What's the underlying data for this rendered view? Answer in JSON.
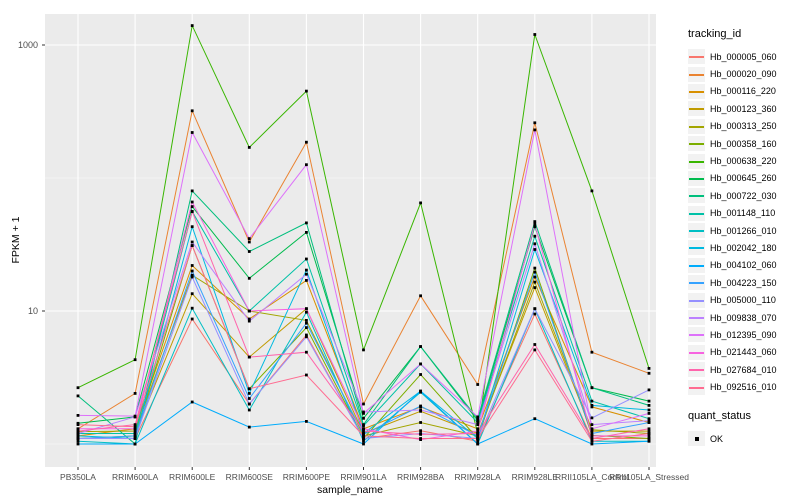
{
  "axes": {
    "y_label": "FPKM + 1",
    "x_label": "sample_name",
    "y_ticks": [
      {
        "label": "1000",
        "value": 1000
      },
      {
        "label": "10",
        "value": 10
      }
    ],
    "y_minor_gridlines": [
      100,
      1
    ],
    "scale": "log10"
  },
  "legend": {
    "tracking_title": "tracking_id",
    "quant_title": "quant_status",
    "quant_items": [
      {
        "label": "OK",
        "marker": "black-square"
      }
    ]
  },
  "colors": {
    "panel_background": "#EBEBEB",
    "gridline": "#FFFFFF",
    "point": "#000000",
    "axis_text": "#4D4D4D"
  },
  "chart_data": {
    "type": "line",
    "title": "",
    "xlabel": "sample_name",
    "ylabel": "FPKM + 1",
    "y_scale": "log10",
    "ylim": [
      0.85,
      1900
    ],
    "legend_position": "right",
    "grid": true,
    "point_marker": "small black square (quant_status OK)",
    "categories": [
      "PB350LA",
      "RRIM600LA",
      "RRIM600LE",
      "RRIM600SE",
      "RRIM600PE",
      "RRIM901LA",
      "RRIM928BA",
      "RRIM928LA",
      "RRIM928LE",
      "RRII105LA_Control",
      "RRII105LA_Stressed"
    ],
    "series": [
      {
        "name": "Hb_000005_060",
        "color": "#F8766D",
        "values": [
          1.1,
          1.1,
          8.7,
          2.0,
          6.6,
          1.1,
          1.26,
          1.05,
          9.5,
          1.1,
          1.1
        ]
      },
      {
        "name": "Hb_000020_090",
        "color": "#EA8331",
        "values": [
          1.3,
          2.4,
          320,
          33,
          186,
          2.0,
          13,
          2.8,
          260,
          4.9,
          3.4
        ]
      },
      {
        "name": "Hb_000116_220",
        "color": "#D89000",
        "values": [
          1.15,
          1.3,
          22,
          8.7,
          17,
          1.3,
          1.9,
          1.3,
          18,
          1.9,
          1.45
        ]
      },
      {
        "name": "Hb_000123_360",
        "color": "#C09B00",
        "values": [
          1.2,
          1.2,
          13.5,
          4.5,
          10.4,
          1.2,
          1.76,
          1.2,
          15,
          1.25,
          1.25
        ]
      },
      {
        "name": "Hb_000313_250",
        "color": "#A3A500",
        "values": [
          1.24,
          1.25,
          18.6,
          10,
          8.5,
          1.15,
          1.45,
          1.15,
          16.5,
          1.28,
          1.2
        ]
      },
      {
        "name": "Hb_000358_160",
        "color": "#7CAE00",
        "values": [
          1.1,
          1.15,
          31,
          2.6,
          7.5,
          1.1,
          3.33,
          1.1,
          21,
          1.16,
          1.1
        ]
      },
      {
        "name": "Hb_000638_220",
        "color": "#39B600",
        "values": [
          2.65,
          4.3,
          1400,
          170,
          450,
          5.1,
          65,
          1.2,
          1200,
          80,
          3.7
        ]
      },
      {
        "name": "Hb_000645_260",
        "color": "#00BB4E",
        "values": [
          1.43,
          1.6,
          61,
          17.6,
          39,
          1.56,
          5.4,
          1.5,
          43,
          2.65,
          2.1
        ]
      },
      {
        "name": "Hb_000722_030",
        "color": "#00BF7D",
        "values": [
          2.3,
          1.0,
          80,
          28,
          46,
          1.4,
          5.4,
          1.55,
          47,
          2.65,
          1.95
        ]
      },
      {
        "name": "Hb_001148_110",
        "color": "#00C1A7",
        "values": [
          1.2,
          1.2,
          56,
          10,
          24.6,
          1.37,
          4.0,
          1.45,
          36.5,
          2.1,
          1.55
        ]
      },
      {
        "name": "Hb_001266_010",
        "color": "#00BFC4",
        "values": [
          1.05,
          1.0,
          10.5,
          1.8,
          9.8,
          1.05,
          2.45,
          1.0,
          10.4,
          1.05,
          1.05
        ]
      },
      {
        "name": "Hb_002042_180",
        "color": "#00BAE0",
        "values": [
          1.15,
          1.1,
          43,
          2.4,
          20.3,
          1.2,
          2.5,
          1.1,
          29,
          1.95,
          1.8
        ]
      },
      {
        "name": "Hb_004102_060",
        "color": "#00ACFC",
        "values": [
          1.0,
          1.0,
          2.07,
          1.34,
          1.48,
          1.0,
          2.5,
          1.0,
          1.55,
          1.0,
          1.05
        ]
      },
      {
        "name": "Hb_004223_150",
        "color": "#35A2FF",
        "values": [
          1.1,
          1.15,
          20,
          2.2,
          8.1,
          1.18,
          1.93,
          1.15,
          19.6,
          1.2,
          1.45
        ]
      },
      {
        "name": "Hb_005000_110",
        "color": "#9590FF",
        "values": [
          1.1,
          1.1,
          18,
          2.0,
          6.4,
          1.1,
          1.2,
          1.1,
          10.4,
          1.57,
          2.55
        ]
      },
      {
        "name": "Hb_009838_070",
        "color": "#BC81FF",
        "values": [
          1.2,
          1.6,
          33,
          8.4,
          18.9,
          1.74,
          1.8,
          1.4,
          32,
          1.4,
          1.5
        ]
      },
      {
        "name": "Hb_012395_090",
        "color": "#DD71FA",
        "values": [
          1.64,
          1.62,
          220,
          35,
          126,
          1.7,
          4.0,
          1.6,
          230,
          1.3,
          1.7
        ]
      },
      {
        "name": "Hb_021443_060",
        "color": "#F763E0",
        "values": [
          1.3,
          1.3,
          66,
          10,
          10.4,
          1.3,
          1.08,
          1.25,
          45,
          1.15,
          1.15
        ]
      },
      {
        "name": "Hb_027684_010",
        "color": "#FF65AC",
        "values": [
          1.25,
          1.4,
          56,
          4.5,
          4.9,
          1.25,
          1.18,
          1.2,
          5.6,
          1.1,
          1.3
        ]
      },
      {
        "name": "Hb_092516_010",
        "color": "#FF6C91",
        "values": [
          1.4,
          1.35,
          31,
          2.6,
          3.3,
          1.15,
          1.1,
          1.1,
          5.1,
          1.05,
          1.2
        ]
      }
    ]
  }
}
